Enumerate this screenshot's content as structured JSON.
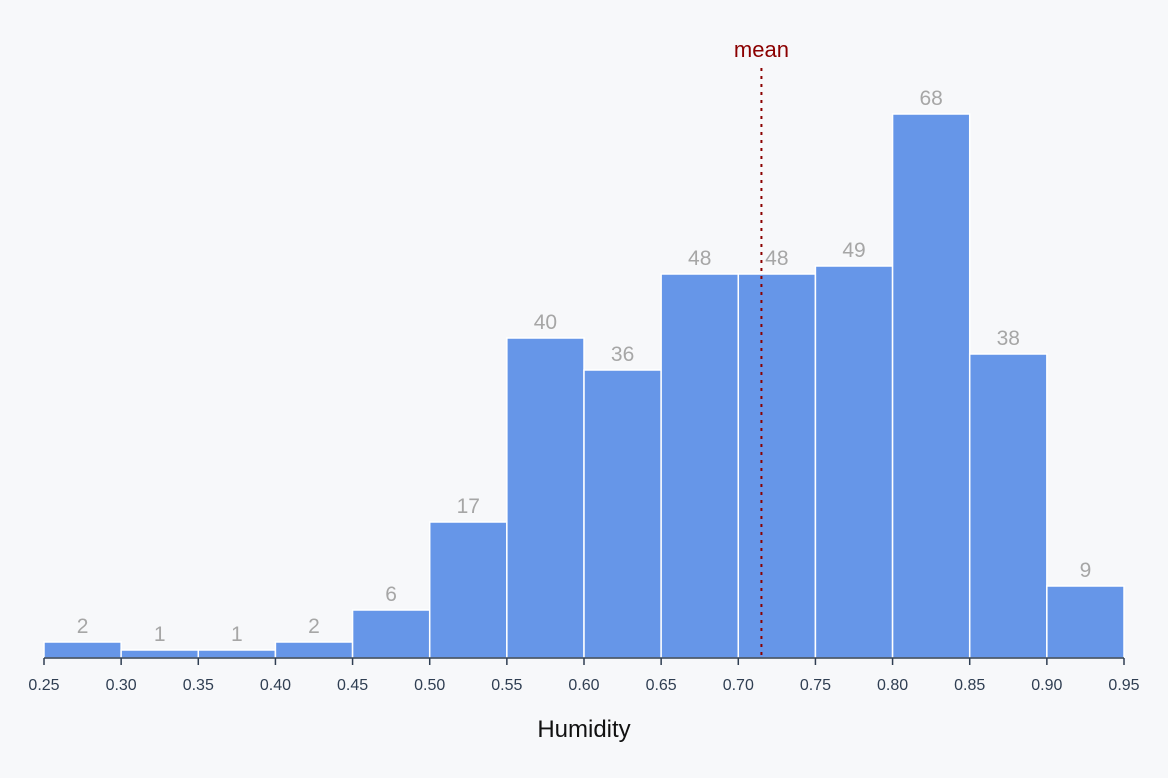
{
  "chart_data": {
    "type": "bar",
    "subtype": "histogram",
    "bins": [
      {
        "x0": 0.25,
        "x1": 0.3,
        "count": 2
      },
      {
        "x0": 0.3,
        "x1": 0.35,
        "count": 1
      },
      {
        "x0": 0.35,
        "x1": 0.4,
        "count": 1
      },
      {
        "x0": 0.4,
        "x1": 0.45,
        "count": 2
      },
      {
        "x0": 0.45,
        "x1": 0.5,
        "count": 6
      },
      {
        "x0": 0.5,
        "x1": 0.55,
        "count": 17
      },
      {
        "x0": 0.55,
        "x1": 0.6,
        "count": 40
      },
      {
        "x0": 0.6,
        "x1": 0.65,
        "count": 36
      },
      {
        "x0": 0.65,
        "x1": 0.7,
        "count": 48
      },
      {
        "x0": 0.7,
        "x1": 0.75,
        "count": 48
      },
      {
        "x0": 0.75,
        "x1": 0.8,
        "count": 49
      },
      {
        "x0": 0.8,
        "x1": 0.85,
        "count": 68
      },
      {
        "x0": 0.85,
        "x1": 0.9,
        "count": 38
      },
      {
        "x0": 0.9,
        "x1": 0.95,
        "count": 9
      }
    ],
    "xlabel": "Humidity",
    "xlim": [
      0.25,
      0.95
    ],
    "x_ticks": [
      "0.25",
      "0.30",
      "0.35",
      "0.40",
      "0.45",
      "0.50",
      "0.55",
      "0.60",
      "0.65",
      "0.70",
      "0.75",
      "0.80",
      "0.85",
      "0.90",
      "0.95"
    ],
    "ylim": [
      0,
      68
    ],
    "y_axis_shown": false,
    "grid": false,
    "mean": {
      "label": "mean",
      "value": 0.715
    },
    "colors": {
      "bar": "#6696e8",
      "bar_stroke": "#ffffff",
      "bar_label": "#a6a6a6",
      "mean_line": "#8b0000",
      "axis": "#2f3e52",
      "background": "#f7f8fa"
    }
  }
}
